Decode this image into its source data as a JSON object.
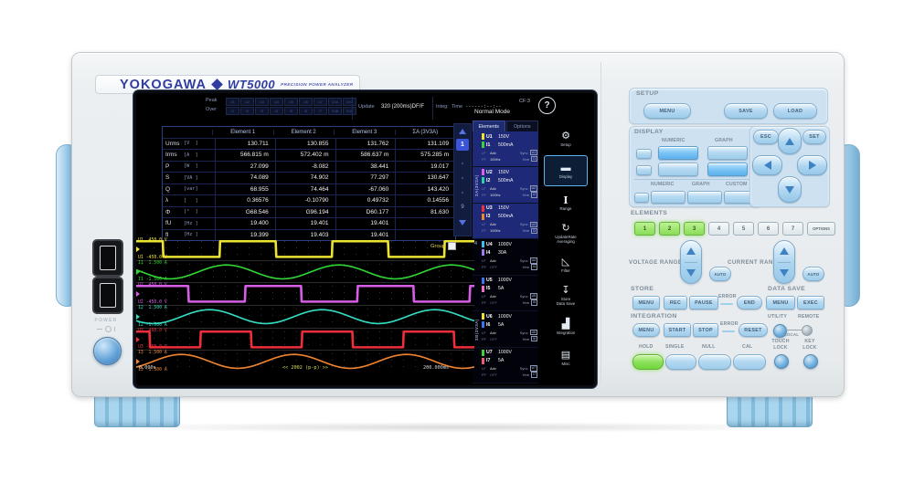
{
  "brand": {
    "logo": "YOKOGAWA",
    "model": "WT5000",
    "subtitle": "PRECISION POWER ANALYZER"
  },
  "screen": {
    "header": {
      "peak_label": "Peak",
      "over_label": "Over",
      "peak_channels": [
        "U1",
        "U2",
        "U3",
        "U4",
        "U5",
        "U6",
        "U7",
        "ChA",
        "ChC"
      ],
      "over_channels": [
        "I1",
        "I2",
        "I3",
        "I4",
        "I5",
        "I6",
        "I7",
        "ChB",
        "ChD"
      ],
      "update_label": "Update",
      "update_value": "320 (200ms)DF/F",
      "integ_label": "Integ:",
      "time_label": "Time",
      "time_value": "------:--:--",
      "mode": "Normal Mode",
      "crest_factor": "CF:3",
      "help": "?"
    },
    "tabs": {
      "elements": "Elements",
      "options": "Options"
    },
    "table": {
      "columns": [
        "Element 1",
        "Element 2",
        "Element 3",
        "ΣA (3V3A)"
      ],
      "rows": [
        {
          "name": "Urms",
          "unit": "[V  ]",
          "values": [
            "130.711",
            "130.855",
            "131.762",
            "131.109"
          ]
        },
        {
          "name": "Irms",
          "unit": "[A  ]",
          "values": [
            "566.815 m",
            "572.402 m",
            "586.637 m",
            "575.285 m"
          ]
        },
        {
          "name": "P",
          "unit": "[W  ]",
          "values": [
            "27.099",
            "-8.082",
            "38.441",
            "19.017"
          ]
        },
        {
          "name": "S",
          "unit": "[VA ]",
          "values": [
            "74.089",
            "74.902",
            "77.297",
            "130.647"
          ]
        },
        {
          "name": "Q",
          "unit": "[var]",
          "values": [
            "68.955",
            "74.464",
            "-67.060",
            "143.420"
          ]
        },
        {
          "name": "λ",
          "unit": "[   ]",
          "values": [
            "0.36576",
            "-0.10790",
            "0.49732",
            "0.14556"
          ]
        },
        {
          "name": "Φ",
          "unit": "[°  ]",
          "values": [
            "G68.546",
            "G96.194",
            "D60.177",
            "81.630"
          ]
        },
        {
          "name": "fU",
          "unit": "[Hz ]",
          "values": [
            "19.400",
            "19.401",
            "19.401",
            ""
          ]
        },
        {
          "name": "fI",
          "unit": "[Hz ]",
          "values": [
            "19.399",
            "19.403",
            "19.401",
            ""
          ]
        }
      ]
    },
    "pager": {
      "current": "1",
      "last": "9"
    },
    "elements_panel": {
      "group_a": "ΣA(3V3A)",
      "group_b": "ΣB(3V3A)",
      "standalone_label": "4",
      "sub": {
        "lf": "LF",
        "ff": "FF",
        "adv": "Adv",
        "sync": "Sync",
        "hrm": "Hrm"
      },
      "items": [
        {
          "u": "U1",
          "u_range": "150V",
          "u_color": "#f0e42c",
          "i": "I1",
          "i_range": "500mA",
          "i_color": "#38d438",
          "freq": "100Hz",
          "selected": true
        },
        {
          "u": "U2",
          "u_range": "150V",
          "u_color": "#e05ee8",
          "i": "I2",
          "i_range": "500mA",
          "i_color": "#2cd4a4",
          "freq": "100Hz",
          "selected": true
        },
        {
          "u": "U3",
          "u_range": "150V",
          "u_color": "#f0303a",
          "i": "I3",
          "i_range": "500mA",
          "i_color": "#f08828",
          "freq": "100Hz",
          "selected": true
        },
        {
          "u": "U4",
          "u_range": "1000V",
          "u_color": "#38c0f0",
          "i": "I4",
          "i_range": "30A",
          "i_color": "#9c7cf4",
          "freq": "OFF",
          "selected": false
        },
        {
          "u": "U5",
          "u_range": "1000V",
          "u_color": "#3a74f0",
          "i": "I5",
          "i_range": "5A",
          "i_color": "#f26cc8",
          "freq": "OFF",
          "selected": false
        },
        {
          "u": "U6",
          "u_range": "1000V",
          "u_color": "#f0e42c",
          "i": "I6",
          "i_range": "5A",
          "i_color": "#3a74f0",
          "freq": "OFF",
          "selected": false
        },
        {
          "u": "U7",
          "u_range": "1000V",
          "u_color": "#38d438",
          "i": "I7",
          "i_range": "5A",
          "i_color": "#f05878",
          "freq": "OFF",
          "selected": false
        }
      ]
    },
    "toolbar": [
      {
        "label": [
          "Setup"
        ],
        "icon": "gear-icon",
        "glyph": "⚙",
        "active": false
      },
      {
        "label": [
          "Display"
        ],
        "icon": "display-icon",
        "glyph": "▬",
        "active": true
      },
      {
        "label": [
          "Range"
        ],
        "icon": "range-icon",
        "glyph": "I",
        "active": false
      },
      {
        "label": [
          "UpdateRate",
          "Averaging"
        ],
        "icon": "update-rate-icon",
        "glyph": "↻",
        "active": false
      },
      {
        "label": [
          "Filter"
        ],
        "icon": "filter-icon",
        "glyph": "◺",
        "active": false
      },
      {
        "label": [
          "Store",
          "Data Save"
        ],
        "icon": "store-icon",
        "glyph": "↧",
        "active": false
      },
      {
        "label": [
          "Integration"
        ],
        "icon": "integration-icon",
        "glyph": "▟",
        "active": false
      },
      {
        "label": [
          "Misc"
        ],
        "icon": "misc-icon",
        "glyph": "▤",
        "active": false
      }
    ],
    "waveforms": [
      {
        "ch": "U1",
        "max": "450.0 V",
        "min": "-450.0 V",
        "color": "#ede431",
        "type": "square",
        "period": 0.333,
        "phase": 0.08
      },
      {
        "ch": "I1",
        "max": "1.500 A",
        "min": "-1.500 A",
        "color": "#30d434",
        "type": "sine",
        "period": 0.333,
        "phase": 0.1
      },
      {
        "ch": "U2",
        "max": "450.0 V",
        "min": "-450.0 V",
        "color": "#d75ce6",
        "type": "square",
        "period": 0.333,
        "phase": 0.155
      },
      {
        "ch": "I2",
        "max": "1.500 A",
        "min": "-1.500 A",
        "color": "#36dcc2",
        "type": "sine",
        "period": 0.333,
        "phase": 0.05
      },
      {
        "ch": "U3",
        "max": "450.0 V",
        "min": "-450.0 V",
        "color": "#ee2e3a",
        "type": "square",
        "period": 0.3,
        "phase": 0.04
      },
      {
        "ch": "I3",
        "max": "1.500 A",
        "min": "-1.500 A",
        "color": "#ef8430",
        "type": "sine",
        "period": 0.333,
        "phase": 0.3
      }
    ],
    "wave_footer": {
      "group": "Group",
      "start": "0.000s",
      "center": "<< 2002 (p-p) >>",
      "end": "200.000ms"
    }
  },
  "panel": {
    "setup": {
      "label": "SETUP",
      "menu": "MENU",
      "save": "SAVE",
      "load": "LOAD"
    },
    "display": {
      "label": "DISPLAY",
      "numeric": "NUMERIC",
      "graph": "GRAPH",
      "custom": "CUSTOM"
    },
    "nav": {
      "esc": "ESC",
      "set": "SET"
    },
    "elements": {
      "label": "ELEMENTS",
      "keys": [
        {
          "t": "1",
          "lit": true
        },
        {
          "t": "2",
          "lit": true
        },
        {
          "t": "3",
          "lit": true
        },
        {
          "t": "4",
          "lit": false
        },
        {
          "t": "5",
          "lit": false
        },
        {
          "t": "6",
          "lit": false
        },
        {
          "t": "7",
          "lit": false
        },
        {
          "t": "OPTIONS",
          "lit": false,
          "wide": true
        }
      ]
    },
    "voltage_range": {
      "label": "VOLTAGE RANGE",
      "auto": "AUTO"
    },
    "current_range": {
      "label": "CURRENT RANGE",
      "auto": "AUTO"
    },
    "store": {
      "label": "STORE",
      "menu": "MENU",
      "rec": "REC",
      "pause": "PAUSE",
      "error": "ERROR",
      "end": "END"
    },
    "data_save": {
      "label": "DATA SAVE",
      "menu": "MENU",
      "exec": "EXEC"
    },
    "integration": {
      "label": "INTEGRATION",
      "menu": "MENU",
      "start": "START",
      "stop": "STOP",
      "error": "ERROR",
      "reset": "RESET"
    },
    "utility": {
      "label": "UTILITY",
      "remote": "REMOTE",
      "local": "LOCAL"
    },
    "keys": {
      "hold": "HOLD",
      "single": "SINGLE",
      "null": "NULL",
      "cal": "CAL",
      "touch_lock": [
        "TOUCH",
        "LOCK"
      ],
      "key_lock": [
        "KEY",
        "LOCK"
      ]
    }
  },
  "left_panel": {
    "power": "POWER"
  }
}
